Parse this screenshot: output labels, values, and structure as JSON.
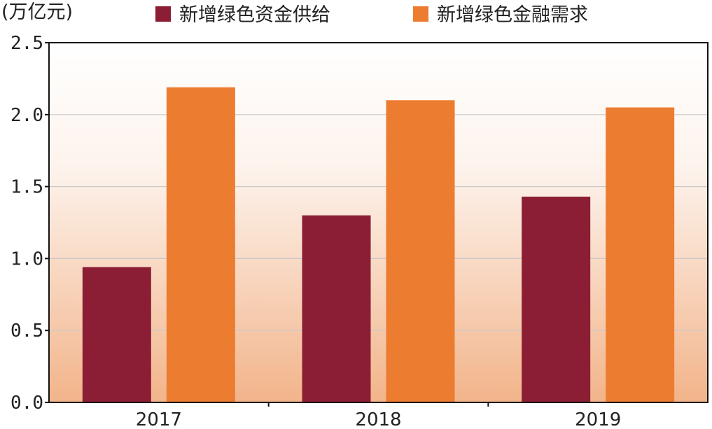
{
  "chart_data": {
    "type": "bar",
    "unit_label": "(万亿元)",
    "categories": [
      "2017",
      "2018",
      "2019"
    ],
    "series": [
      {
        "name": "新增绿色资金供给",
        "color": "#8b1e35",
        "values": [
          0.94,
          1.3,
          1.43
        ]
      },
      {
        "name": "新增绿色金融需求",
        "color": "#ec7c30",
        "values": [
          2.19,
          2.1,
          2.05
        ]
      }
    ],
    "ylim": [
      0,
      2.5
    ],
    "yticks": [
      "0.0",
      "0.5",
      "1.0",
      "1.5",
      "2.0",
      "2.5"
    ],
    "grid": true,
    "legend_position": "top",
    "background_gradient": [
      "#ffffff",
      "#f2b48a"
    ]
  }
}
